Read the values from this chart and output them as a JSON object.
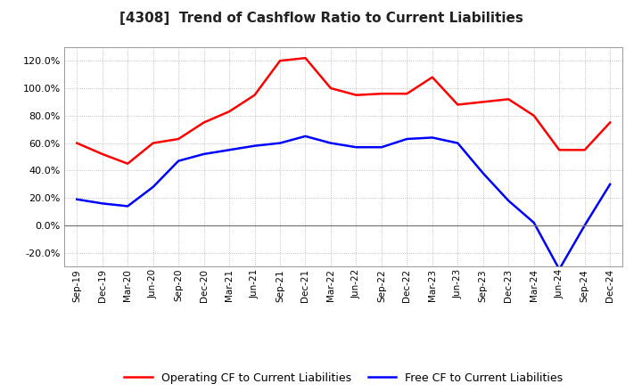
{
  "title": "[4308]  Trend of Cashflow Ratio to Current Liabilities",
  "x_labels": [
    "Sep-19",
    "Dec-19",
    "Mar-20",
    "Jun-20",
    "Sep-20",
    "Dec-20",
    "Mar-21",
    "Jun-21",
    "Sep-21",
    "Dec-21",
    "Mar-22",
    "Jun-22",
    "Sep-22",
    "Dec-22",
    "Mar-23",
    "Jun-23",
    "Sep-23",
    "Dec-23",
    "Mar-24",
    "Jun-24",
    "Sep-24",
    "Dec-24"
  ],
  "operating_cf": [
    60.0,
    52.0,
    45.0,
    60.0,
    63.0,
    75.0,
    83.0,
    95.0,
    120.0,
    122.0,
    100.0,
    95.0,
    96.0,
    96.0,
    108.0,
    88.0,
    90.0,
    92.0,
    80.0,
    55.0,
    55.0,
    75.0
  ],
  "free_cf": [
    19.0,
    16.0,
    14.0,
    28.0,
    47.0,
    52.0,
    55.0,
    58.0,
    60.0,
    65.0,
    60.0,
    57.0,
    57.0,
    63.0,
    64.0,
    60.0,
    38.0,
    18.0,
    2.0,
    -32.0,
    0.0,
    30.0
  ],
  "operating_color": "#ff0000",
  "free_color": "#0000ff",
  "ylim": [
    -30,
    130
  ],
  "yticks": [
    -20,
    0,
    20,
    40,
    60,
    80,
    100,
    120
  ],
  "background_color": "#ffffff",
  "grid_color": "#b0b0b0",
  "legend_labels": [
    "Operating CF to Current Liabilities",
    "Free CF to Current Liabilities"
  ]
}
